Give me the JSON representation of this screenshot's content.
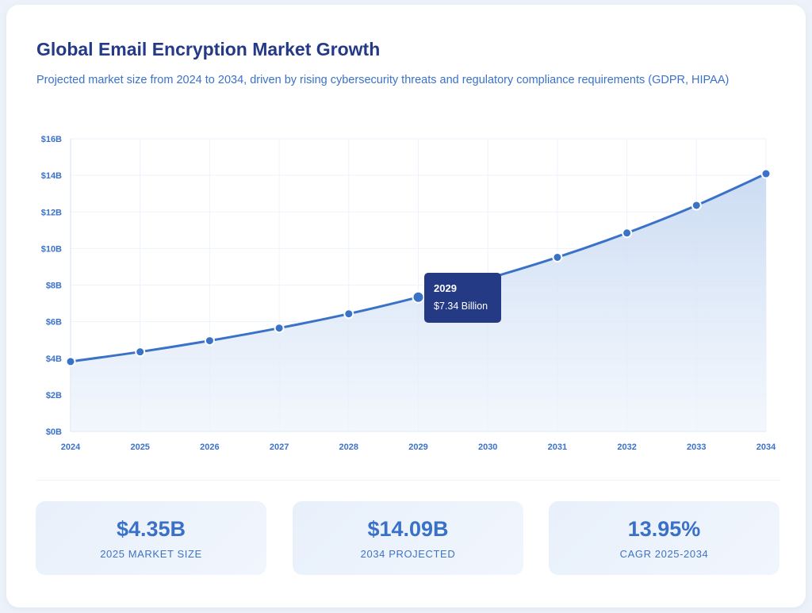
{
  "header": {
    "title": "Global Email Encryption Market Growth",
    "subtitle": "Projected market size from 2024 to 2034, driven by rising cybersecurity threats and regulatory compliance requirements (GDPR, HIPAA)"
  },
  "chart_data": {
    "type": "area",
    "x": [
      2024,
      2025,
      2026,
      2027,
      2028,
      2029,
      2030,
      2031,
      2032,
      2033,
      2034
    ],
    "x_tick_labels": [
      "2024",
      "2025",
      "2026",
      "2027",
      "2028",
      "2029",
      "2030",
      "2031",
      "2032",
      "2033",
      "2034"
    ],
    "values": [
      3.82,
      4.35,
      4.96,
      5.65,
      6.43,
      7.34,
      8.36,
      9.52,
      10.85,
      12.36,
      14.09
    ],
    "unit": "Billion USD",
    "ylim": [
      0,
      16
    ],
    "y_ticks": [
      0,
      2,
      4,
      6,
      8,
      10,
      12,
      14,
      16
    ],
    "y_tick_labels": [
      "$0B",
      "$2B",
      "$4B",
      "$6B",
      "$8B",
      "$10B",
      "$12B",
      "$14B",
      "$16B"
    ],
    "grid": true,
    "line_color": "#3a72c8",
    "fill_color": "#c9daf2",
    "tooltip": {
      "year": "2029",
      "value": "$7.34 Billion"
    }
  },
  "stats": [
    {
      "value": "$4.35B",
      "label": "2025 MARKET SIZE"
    },
    {
      "value": "$14.09B",
      "label": "2034 PROJECTED"
    },
    {
      "value": "13.95%",
      "label": "CAGR 2025-2034"
    }
  ]
}
